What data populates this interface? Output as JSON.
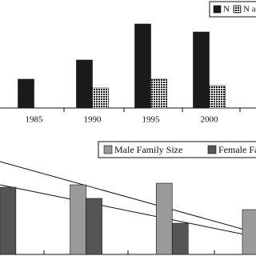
{
  "chart_data": [
    {
      "type": "bar",
      "categories": [
        "1985",
        "1990",
        "1995",
        "2000"
      ],
      "series": [
        {
          "name": "N",
          "color": "#1a1a1a",
          "values": [
            36,
            60,
            105,
            95
          ]
        },
        {
          "name": "N a",
          "color": "dotted",
          "values": [
            null,
            25,
            36,
            28
          ]
        }
      ],
      "ylim": [
        0,
        135
      ]
    },
    {
      "type": "bar",
      "categories": [
        null,
        null,
        null,
        null
      ],
      "series": [
        {
          "name": "Male Family Size",
          "color": "#9a9a9a",
          "values": [
            null,
            87,
            89,
            56
          ]
        },
        {
          "name": "Female Fa",
          "color": "#555555",
          "values": [
            84,
            70,
            39,
            null
          ]
        }
      ],
      "ylim": [
        0,
        135
      ]
    }
  ]
}
